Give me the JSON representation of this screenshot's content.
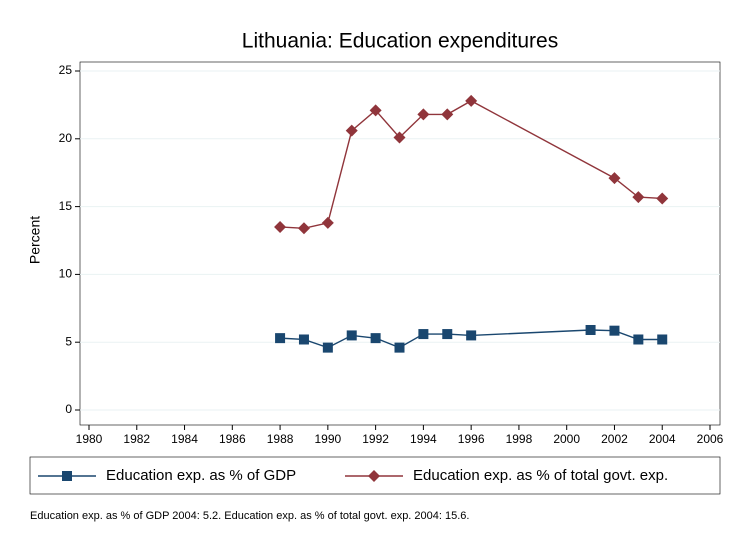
{
  "chart_data": {
    "type": "line",
    "title": "Lithuania: Education expenditures",
    "y_label": "Percent",
    "note": "Education exp. as % of GDP 2004: 5.2. Education exp. as % of total govt. exp. 2004: 15.6.",
    "series": [
      {
        "name": "Education exp. as % of GDP",
        "color": "#1a476f",
        "marker": "square",
        "x": [
          1988,
          1989,
          1990,
          1991,
          1992,
          1993,
          1994,
          1995,
          1996,
          2001,
          2002,
          2003,
          2004
        ],
        "values": [
          5.3,
          5.2,
          4.6,
          5.5,
          5.3,
          4.6,
          5.6,
          5.6,
          5.5,
          5.9,
          5.85,
          5.2,
          5.2
        ]
      },
      {
        "name": "Education exp. as % of total govt. exp.",
        "color": "#90353b",
        "marker": "diamond",
        "x": [
          1988,
          1989,
          1990,
          1991,
          1992,
          1993,
          1994,
          1995,
          1996,
          2002,
          2003,
          2004
        ],
        "values": [
          13.5,
          13.4,
          13.8,
          20.6,
          22.1,
          20.1,
          21.8,
          21.8,
          22.8,
          17.1,
          15.7,
          15.6
        ]
      }
    ],
    "xlim": [
      1980,
      2006
    ],
    "xticks": [
      1980,
      1982,
      1984,
      1986,
      1988,
      1990,
      1992,
      1994,
      1996,
      1998,
      2000,
      2002,
      2004,
      2006
    ],
    "ylim": [
      0,
      25
    ],
    "yticks": [
      0,
      5,
      10,
      15,
      20,
      25
    ],
    "grid": true
  }
}
